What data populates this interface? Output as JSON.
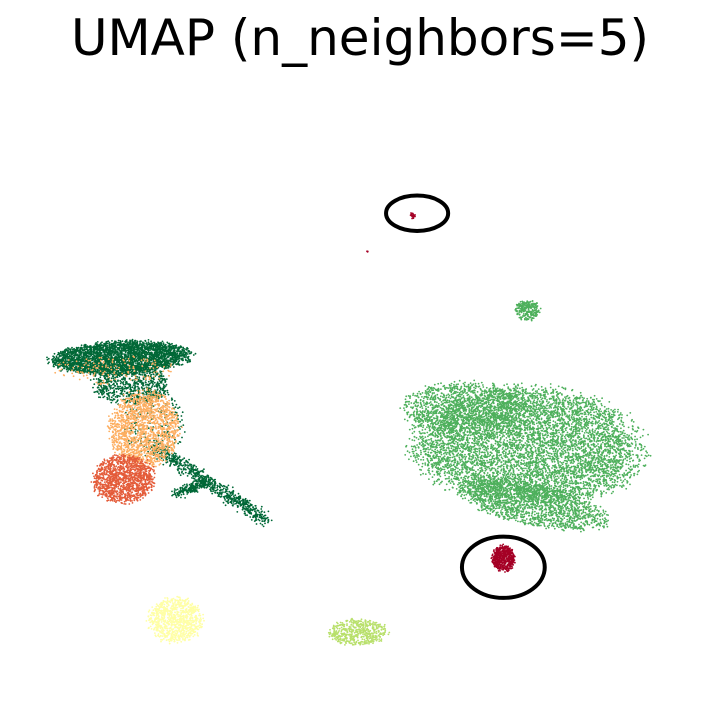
{
  "chart_data": {
    "type": "scatter",
    "title": "UMAP (n_neighbors=5)",
    "xlabel": "",
    "ylabel": "",
    "axes_visible": false,
    "grid": false,
    "legend": "none",
    "xlim": [
      0,
      10
    ],
    "ylim": [
      0,
      10
    ],
    "colors": {
      "dark_green": "#006837",
      "light_orange": "#fdae61",
      "red_orange": "#e45c3a",
      "green": "#4eb05c",
      "crimson": "#a50026",
      "light_yellow": "#ffffa6",
      "yellow_green": "#b8e06b"
    },
    "series": [
      {
        "color_key": "dark_green",
        "clusters": [
          {
            "shape": "ellipse",
            "cx": 1.6,
            "cy": 5.8,
            "rx": 1.0,
            "ry": 0.28,
            "n": 3200,
            "rot": 0.05
          },
          {
            "shape": "ellipse",
            "cx": 1.75,
            "cy": 5.35,
            "rx": 0.55,
            "ry": 0.35,
            "n": 700,
            "rot": 0
          },
          {
            "shape": "band",
            "x1": 2.1,
            "y1": 4.3,
            "x2": 3.7,
            "y2": 3.05,
            "width": 0.12,
            "n": 700
          },
          {
            "shape": "band",
            "x1": 2.9,
            "y1": 3.7,
            "x2": 2.4,
            "y2": 3.5,
            "width": 0.08,
            "n": 250
          },
          {
            "shape": "ellipse",
            "cx": 2.1,
            "cy": 4.7,
            "rx": 0.45,
            "ry": 0.6,
            "n": 220,
            "rot": 0
          }
        ]
      },
      {
        "color_key": "light_orange",
        "clusters": [
          {
            "shape": "ellipse",
            "cx": 1.95,
            "cy": 4.6,
            "rx": 0.5,
            "ry": 0.65,
            "n": 1600,
            "rot": 0
          },
          {
            "shape": "ellipse",
            "cx": 1.5,
            "cy": 5.6,
            "rx": 0.9,
            "ry": 0.25,
            "n": 150,
            "rot": 0
          }
        ]
      },
      {
        "color_key": "red_orange",
        "clusters": [
          {
            "shape": "ellipse",
            "cx": 1.65,
            "cy": 3.75,
            "rx": 0.45,
            "ry": 0.4,
            "n": 1300,
            "rot": 0.2
          }
        ]
      },
      {
        "color_key": "green",
        "clusters": [
          {
            "shape": "ellipse",
            "cx": 7.5,
            "cy": 4.3,
            "rx": 1.65,
            "ry": 1.0,
            "n": 6500,
            "rot": -0.05
          },
          {
            "shape": "ellipse",
            "cx": 6.6,
            "cy": 4.95,
            "rx": 0.9,
            "ry": 0.45,
            "n": 1200,
            "rot": 0
          },
          {
            "shape": "ellipse",
            "cx": 7.6,
            "cy": 3.3,
            "rx": 1.1,
            "ry": 0.35,
            "n": 1500,
            "rot": -0.25
          },
          {
            "shape": "ellipse",
            "cx": 7.5,
            "cy": 6.6,
            "rx": 0.18,
            "ry": 0.18,
            "n": 260,
            "rot": 0
          }
        ]
      },
      {
        "color_key": "crimson",
        "clusters": [
          {
            "shape": "ellipse",
            "cx": 7.15,
            "cy": 2.4,
            "rx": 0.17,
            "ry": 0.22,
            "n": 600,
            "rot": 0
          },
          {
            "shape": "ellipse",
            "cx": 5.83,
            "cy": 8.22,
            "rx": 0.04,
            "ry": 0.06,
            "n": 25,
            "rot": 0
          },
          {
            "shape": "ellipse",
            "cx": 5.18,
            "cy": 7.6,
            "rx": 0.01,
            "ry": 0.01,
            "n": 3,
            "rot": 0
          }
        ]
      },
      {
        "color_key": "light_yellow",
        "clusters": [
          {
            "shape": "ellipse",
            "cx": 2.4,
            "cy": 1.35,
            "rx": 0.4,
            "ry": 0.38,
            "n": 900,
            "rot": 0
          }
        ]
      },
      {
        "color_key": "yellow_green",
        "clusters": [
          {
            "shape": "ellipse",
            "cx": 5.05,
            "cy": 1.15,
            "rx": 0.42,
            "ry": 0.22,
            "n": 500,
            "rot": 0
          }
        ]
      }
    ],
    "annotations": [
      {
        "type": "ellipse",
        "cx": 5.9,
        "cy": 8.25,
        "rx": 0.45,
        "ry": 0.3,
        "color": "#000000"
      },
      {
        "type": "ellipse",
        "cx": 7.15,
        "cy": 2.25,
        "rx": 0.6,
        "ry": 0.52,
        "color": "#000000"
      }
    ]
  }
}
